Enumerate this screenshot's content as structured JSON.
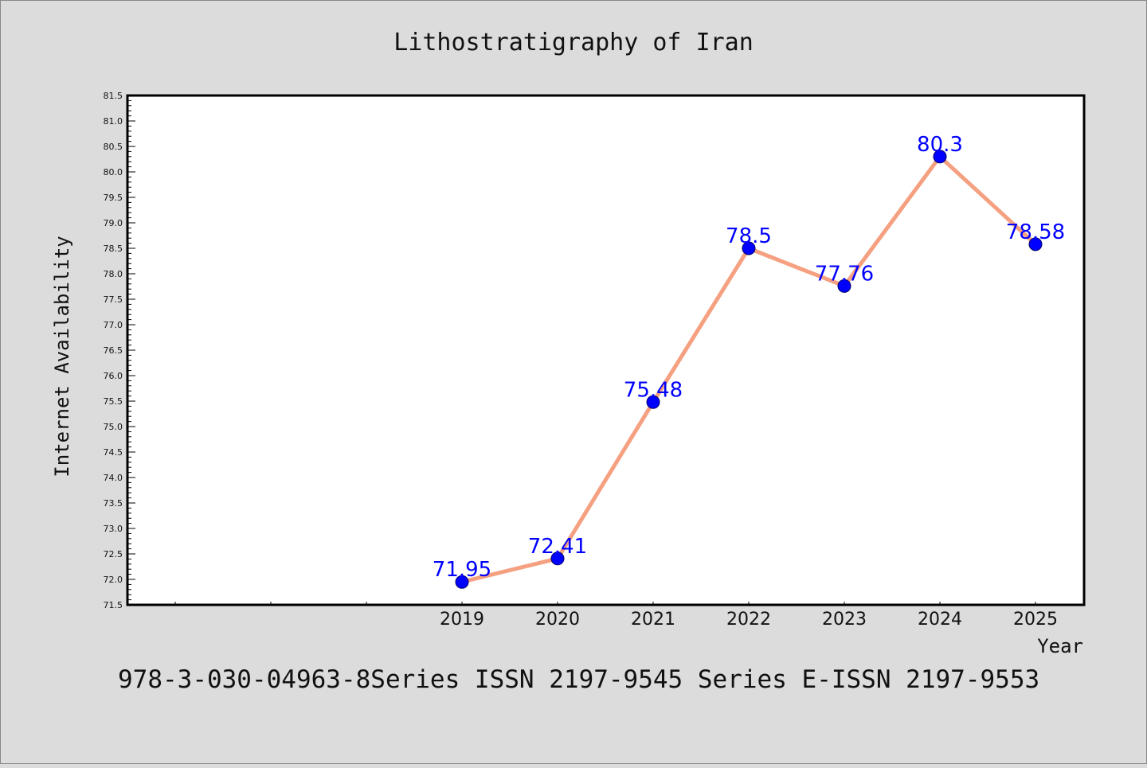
{
  "chart_data": {
    "type": "line",
    "title": "Lithostratigraphy of Iran",
    "xlabel": "Year",
    "ylabel": "Internet Availability",
    "footer": "978-3-030-04963-8Series ISSN 2197-9545 Series E-ISSN 2197-9553",
    "x": [
      "2019",
      "2020",
      "2021",
      "2022",
      "2023",
      "2024",
      "2025"
    ],
    "series": [
      {
        "values": [
          71.95,
          72.41,
          75.48,
          78.5,
          77.76,
          80.3,
          78.58
        ]
      }
    ],
    "data_labels": [
      "71.95",
      "72.41",
      "75.48",
      "78.5",
      "77.76",
      "80.3",
      "78.58"
    ],
    "y_ticks": [
      "71.5",
      "72.0",
      "72.5",
      "73.0",
      "73.5",
      "74.0",
      "74.5",
      "75.0",
      "75.5",
      "76.0",
      "76.5",
      "77.0",
      "77.5",
      "78.0",
      "78.5",
      "79.0",
      "79.5",
      "80.0",
      "80.5",
      "81.0",
      "81.5"
    ],
    "ylim": [
      71.5,
      81.5
    ],
    "grid": false,
    "legend": "none",
    "colors": {
      "line": "#f5a080",
      "marker": "#0000ff",
      "data_label": "#0000ff",
      "background": "#dcdcdc",
      "plot_background": "#ffffff"
    }
  }
}
